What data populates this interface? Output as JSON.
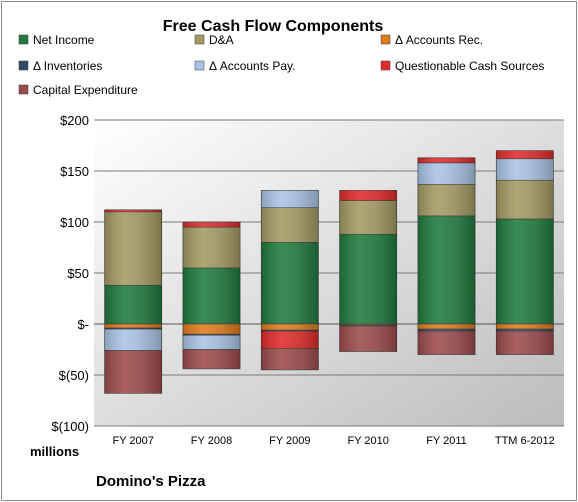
{
  "chart_data": {
    "type": "bar",
    "stacked": true,
    "title": "Free Cash Flow Components",
    "caption": "Domino's Pizza",
    "y_unit_label": "millions",
    "ylim": [
      -100,
      200
    ],
    "y_ticks": [
      200,
      150,
      100,
      50,
      0,
      -50,
      -100
    ],
    "y_tick_labels": [
      "$200",
      "$150",
      "$100",
      "$50",
      "$-",
      "$(50)",
      "$(100)"
    ],
    "grid": true,
    "legend_position": "top",
    "categories": [
      "FY 2007",
      "FY 2008",
      "FY 2009",
      "FY 2010",
      "FY 2011",
      "TTM 6-2012"
    ],
    "series": [
      {
        "name": "Net Income",
        "color": "#1f7a3d",
        "values": [
          38,
          55,
          80,
          88,
          106,
          103
        ]
      },
      {
        "name": "D&A",
        "color": "#a39a63",
        "values": [
          72,
          40,
          34,
          33,
          31,
          38
        ]
      },
      {
        "name": "Δ Accounts Rec.",
        "color": "#e07b1a",
        "values": [
          -4,
          -10,
          -6,
          -1,
          -5,
          -5
        ]
      },
      {
        "name": "Δ Inventories",
        "color": "#2e4a6b",
        "values": [
          -1,
          -1,
          -1,
          -1,
          -2,
          -2
        ]
      },
      {
        "name": "Δ Accounts Pay.",
        "color": "#a9c4e6",
        "values": [
          -21,
          -14,
          17,
          0,
          21,
          21
        ]
      },
      {
        "name": "Questionable Cash Sources",
        "color": "#e02a2a",
        "values": [
          2,
          5,
          -17,
          10,
          5,
          8
        ]
      },
      {
        "name": "Capital Expenditure",
        "color": "#9c4a4a",
        "values": [
          -42,
          -19,
          -21,
          -25,
          -23,
          -23
        ]
      }
    ]
  }
}
